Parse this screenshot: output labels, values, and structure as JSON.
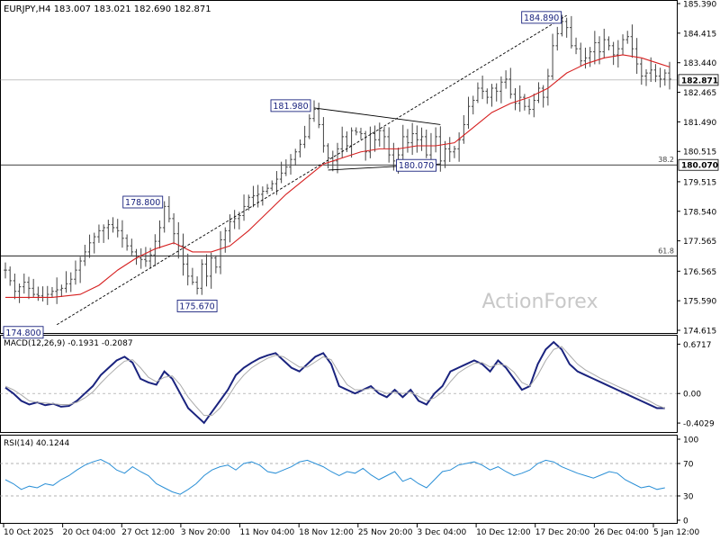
{
  "chart_data": [
    {
      "type": "candlestick",
      "panel": "price",
      "title": "EURJPY,H4  183.007 183.021 182.690 182.871",
      "ylim": [
        174.615,
        185.39
      ],
      "y_ticks": [
        "185.390",
        "184.415",
        "183.440",
        "182.465",
        "181.490",
        "180.515",
        "179.515",
        "178.540",
        "177.565",
        "176.565",
        "175.590",
        "174.615"
      ],
      "x_ticks": [
        "10 Oct 2025",
        "20 Oct 04:00",
        "27 Oct 12:00",
        "3 Nov 20:00",
        "11 Nov 04:00",
        "18 Nov 12:00",
        "25 Nov 20:00",
        "3 Dec 04:00",
        "10 Dec 12:00",
        "17 Dec 20:00",
        "26 Dec 04:00",
        "5 Jan 12:00"
      ],
      "x_count": 100,
      "close_points": [
        [
          0,
          176.6
        ],
        [
          2,
          175.9
        ],
        [
          4,
          176.2
        ],
        [
          6,
          175.8
        ],
        [
          8,
          175.7
        ],
        [
          10,
          175.9
        ],
        [
          12,
          176.0
        ],
        [
          14,
          176.3
        ],
        [
          16,
          176.9
        ],
        [
          18,
          177.5
        ],
        [
          20,
          177.9
        ],
        [
          22,
          178.1
        ],
        [
          24,
          177.9
        ],
        [
          26,
          177.4
        ],
        [
          28,
          177.0
        ],
        [
          30,
          176.9
        ],
        [
          31,
          177.1
        ],
        [
          33,
          178.0
        ],
        [
          34,
          178.7
        ],
        [
          35,
          178.3
        ],
        [
          36,
          177.8
        ],
        [
          37,
          177.4
        ],
        [
          38,
          176.8
        ],
        [
          39,
          176.4
        ],
        [
          40,
          176.2
        ],
        [
          41,
          176.0
        ],
        [
          42,
          176.8
        ],
        [
          43,
          176.4
        ],
        [
          44,
          177.0
        ],
        [
          45,
          176.7
        ],
        [
          46,
          177.6
        ],
        [
          48,
          178.2
        ],
        [
          50,
          178.4
        ],
        [
          52,
          179.0
        ],
        [
          54,
          179.1
        ],
        [
          56,
          179.3
        ],
        [
          58,
          179.6
        ],
        [
          60,
          180.0
        ],
        [
          62,
          180.5
        ],
        [
          64,
          181.0
        ],
        [
          65,
          181.6
        ],
        [
          66,
          181.9
        ],
        [
          67,
          181.4
        ],
        [
          68,
          180.7
        ],
        [
          69,
          180.3
        ],
        [
          70,
          180.2
        ],
        [
          71,
          180.6
        ],
        [
          72,
          181.0
        ],
        [
          73,
          180.7
        ],
        [
          74,
          181.2
        ],
        [
          76,
          181.1
        ],
        [
          77,
          180.5
        ],
        [
          78,
          181.1
        ],
        [
          79,
          180.9
        ],
        [
          80,
          181.2
        ],
        [
          81,
          181.0
        ],
        [
          82,
          180.4
        ],
        [
          83,
          180.2
        ],
        [
          84,
          180.4
        ],
        [
          85,
          181.0
        ],
        [
          86,
          180.8
        ],
        [
          87,
          181.1
        ],
        [
          88,
          180.9
        ],
        [
          89,
          181.0
        ],
        [
          90,
          180.4
        ],
        [
          91,
          180.7
        ],
        [
          92,
          181.0
        ],
        [
          93,
          180.2
        ],
        [
          94,
          180.6
        ],
        [
          95,
          180.5
        ],
        [
          96,
          180.6
        ],
        [
          97,
          180.9
        ],
        [
          98,
          181.4
        ],
        [
          99,
          182.0
        ]
      ],
      "close_points_cont": [
        [
          100,
          182.2
        ],
        [
          101,
          182.6
        ],
        [
          102,
          182.5
        ],
        [
          103,
          182.3
        ],
        [
          104,
          182.6
        ],
        [
          105,
          182.5
        ],
        [
          106,
          182.8
        ],
        [
          107,
          182.9
        ],
        [
          108,
          182.4
        ],
        [
          109,
          182.1
        ],
        [
          110,
          182.3
        ],
        [
          111,
          182.0
        ],
        [
          112,
          181.9
        ],
        [
          113,
          182.2
        ],
        [
          114,
          182.6
        ],
        [
          115,
          182.3
        ],
        [
          116,
          183.0
        ],
        [
          117,
          184.0
        ],
        [
          118,
          184.4
        ],
        [
          119,
          184.8
        ],
        [
          120,
          184.6
        ],
        [
          121,
          184.0
        ],
        [
          122,
          183.9
        ],
        [
          123,
          183.5
        ],
        [
          124,
          183.6
        ],
        [
          125,
          183.8
        ],
        [
          126,
          184.1
        ],
        [
          127,
          183.8
        ],
        [
          128,
          184.2
        ],
        [
          129,
          184.0
        ],
        [
          130,
          183.7
        ],
        [
          131,
          183.9
        ],
        [
          132,
          184.2
        ],
        [
          133,
          184.3
        ],
        [
          134,
          183.9
        ],
        [
          135,
          183.4
        ],
        [
          136,
          183.0
        ],
        [
          137,
          183.1
        ],
        [
          138,
          183.2
        ],
        [
          139,
          183.0
        ],
        [
          140,
          182.9
        ],
        [
          141,
          183.1
        ],
        [
          142,
          182.9
        ]
      ],
      "ma_points": [
        [
          0,
          175.7
        ],
        [
          10,
          175.7
        ],
        [
          16,
          175.8
        ],
        [
          20,
          176.1
        ],
        [
          24,
          176.6
        ],
        [
          28,
          177.0
        ],
        [
          32,
          177.3
        ],
        [
          36,
          177.5
        ],
        [
          40,
          177.2
        ],
        [
          44,
          177.2
        ],
        [
          48,
          177.4
        ],
        [
          52,
          177.9
        ],
        [
          56,
          178.5
        ],
        [
          60,
          179.1
        ],
        [
          64,
          179.6
        ],
        [
          68,
          180.1
        ],
        [
          72,
          180.3
        ],
        [
          76,
          180.5
        ],
        [
          80,
          180.6
        ],
        [
          84,
          180.6
        ],
        [
          88,
          180.7
        ],
        [
          92,
          180.7
        ],
        [
          96,
          180.8
        ],
        [
          100,
          181.3
        ],
        [
          104,
          181.8
        ],
        [
          108,
          182.1
        ],
        [
          112,
          182.3
        ],
        [
          116,
          182.6
        ],
        [
          120,
          183.1
        ],
        [
          124,
          183.4
        ],
        [
          128,
          183.6
        ],
        [
          132,
          183.7
        ],
        [
          136,
          183.6
        ],
        [
          140,
          183.4
        ],
        [
          142,
          183.3
        ]
      ],
      "horizontal_levels": [
        {
          "value": 180.07,
          "label": "38.2",
          "price_tag": "180.070"
        },
        {
          "value": 177.07,
          "label": "61.8"
        },
        {
          "value": 182.871,
          "price_tag": "182.871"
        }
      ],
      "annotations": [
        {
          "text": "184.890",
          "x": 120,
          "y": 184.89
        },
        {
          "text": "181.980",
          "x": 66,
          "y": 181.98
        },
        {
          "text": "180.070",
          "x": 84,
          "y": 180.07
        },
        {
          "text": "178.800",
          "x": 34,
          "y": 178.8
        },
        {
          "text": "175.670",
          "x": 41,
          "y": 175.67
        },
        {
          "text": "174.800",
          "x": 11,
          "y": 174.8
        }
      ],
      "trendlines": [
        {
          "style": "dashed",
          "from": [
            11,
            174.8
          ],
          "to": [
            120,
            185.0
          ]
        },
        {
          "style": "solid",
          "from": [
            66,
            181.95
          ],
          "to": [
            93,
            181.4
          ]
        },
        {
          "style": "solid",
          "from": [
            69,
            179.9
          ],
          "to": [
            93,
            180.1
          ]
        }
      ],
      "watermark": "ActionForex"
    },
    {
      "type": "line",
      "panel": "macd",
      "title": "MACD(12,26,9) -0.1931 -0.2087",
      "ylim": [
        -0.5,
        0.75
      ],
      "y_ticks": [
        "0.6717",
        "0.00",
        "-0.4029"
      ],
      "series": [
        {
          "role": "macd",
          "values": [
            0.08,
            0.0,
            -0.1,
            -0.15,
            -0.12,
            -0.16,
            -0.14,
            -0.18,
            -0.17,
            -0.1,
            0.0,
            0.1,
            0.25,
            0.35,
            0.45,
            0.5,
            0.42,
            0.2,
            0.15,
            0.12,
            0.3,
            0.2,
            0.0,
            -0.2,
            -0.3,
            -0.4,
            -0.25,
            -0.1,
            0.05,
            0.25,
            0.35,
            0.42,
            0.48,
            0.52,
            0.55,
            0.45,
            0.35,
            0.3,
            0.4,
            0.5,
            0.55,
            0.4,
            0.1,
            0.05,
            0.0,
            0.05,
            0.1,
            0.0,
            -0.05,
            0.05,
            -0.05,
            0.05,
            -0.1,
            -0.15,
            0.0,
            0.1,
            0.3,
            0.35,
            0.4,
            0.45,
            0.4,
            0.3,
            0.45,
            0.35,
            0.2,
            0.05,
            0.1,
            0.4,
            0.6,
            0.7,
            0.6,
            0.4,
            0.3,
            0.25,
            0.2,
            0.15,
            0.1,
            0.05,
            0.0,
            -0.05,
            -0.1,
            -0.15,
            -0.2,
            -0.2
          ]
        },
        {
          "role": "signal",
          "values": [
            0.1,
            0.05,
            -0.02,
            -0.1,
            -0.12,
            -0.13,
            -0.14,
            -0.15,
            -0.15,
            -0.12,
            -0.06,
            0.02,
            0.14,
            0.25,
            0.35,
            0.44,
            0.46,
            0.35,
            0.22,
            0.16,
            0.22,
            0.24,
            0.12,
            -0.05,
            -0.18,
            -0.3,
            -0.3,
            -0.2,
            -0.05,
            0.12,
            0.25,
            0.35,
            0.42,
            0.48,
            0.52,
            0.5,
            0.43,
            0.36,
            0.36,
            0.43,
            0.5,
            0.46,
            0.28,
            0.12,
            0.05,
            0.05,
            0.07,
            0.04,
            0.0,
            0.02,
            0.0,
            0.02,
            -0.04,
            -0.1,
            -0.06,
            0.02,
            0.16,
            0.28,
            0.35,
            0.41,
            0.42,
            0.36,
            0.4,
            0.38,
            0.29,
            0.15,
            0.1,
            0.25,
            0.45,
            0.6,
            0.64,
            0.52,
            0.4,
            0.32,
            0.26,
            0.2,
            0.15,
            0.1,
            0.05,
            0.0,
            -0.05,
            -0.1,
            -0.16,
            -0.2
          ]
        }
      ]
    },
    {
      "type": "line",
      "panel": "rsi",
      "title": "RSI(14) 40.1244",
      "ylim": [
        0,
        100
      ],
      "y_ticks": [
        "100",
        "70",
        "30",
        "0"
      ],
      "levels": [
        70,
        30
      ],
      "values": [
        50,
        45,
        38,
        42,
        40,
        45,
        43,
        50,
        55,
        62,
        68,
        72,
        75,
        70,
        62,
        58,
        66,
        60,
        55,
        45,
        40,
        35,
        32,
        38,
        45,
        55,
        62,
        66,
        68,
        62,
        70,
        72,
        68,
        60,
        58,
        62,
        66,
        72,
        74,
        70,
        66,
        60,
        55,
        60,
        58,
        64,
        56,
        50,
        55,
        60,
        48,
        52,
        45,
        40,
        50,
        60,
        62,
        68,
        70,
        72,
        68,
        62,
        66,
        60,
        55,
        58,
        62,
        70,
        74,
        72,
        66,
        62,
        58,
        55,
        52,
        56,
        60,
        58,
        50,
        45,
        40,
        42,
        38,
        40
      ]
    }
  ]
}
